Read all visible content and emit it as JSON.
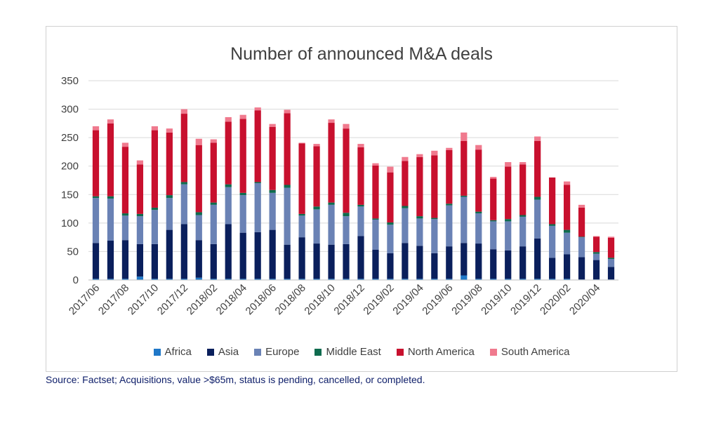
{
  "chart_data": {
    "type": "bar",
    "stacked": true,
    "title": "Number of announced M&A deals",
    "xlabel": "",
    "ylabel": "",
    "ylim": [
      0,
      350
    ],
    "yticks": [
      0,
      50,
      100,
      150,
      200,
      250,
      300,
      350
    ],
    "grid": true,
    "legend_position": "bottom",
    "categories": [
      "2017/06",
      "2017/07",
      "2017/08",
      "2017/09",
      "2017/10",
      "2017/11",
      "2017/12",
      "2018/01",
      "2018/02",
      "2018/03",
      "2018/04",
      "2018/05",
      "2018/06",
      "2018/07",
      "2018/08",
      "2018/09",
      "2018/10",
      "2018/11",
      "2018/12",
      "2019/01",
      "2019/02",
      "2019/03",
      "2019/04",
      "2019/05",
      "2019/06",
      "2019/07",
      "2019/08",
      "2019/09",
      "2019/10",
      "2019/11",
      "2019/12",
      "2020/01",
      "2020/02",
      "2020/03",
      "2020/04",
      "2020/05"
    ],
    "tick_labels": [
      "2017/06",
      "2017/08",
      "2017/10",
      "2017/12",
      "2018/02",
      "2018/04",
      "2018/06",
      "2018/08",
      "2018/10",
      "2018/12",
      "2019/02",
      "2019/04",
      "2019/06",
      "2019/08",
      "2019/10",
      "2019/12",
      "2020/02",
      "2020/04"
    ],
    "series": [
      {
        "name": "Africa",
        "color": "#1f78c8",
        "values": [
          2,
          2,
          2,
          6,
          2,
          2,
          2,
          4,
          2,
          2,
          2,
          2,
          2,
          2,
          2,
          2,
          2,
          2,
          2,
          2,
          2,
          2,
          2,
          2,
          2,
          8,
          2,
          2,
          2,
          2,
          2,
          2,
          2,
          1,
          1,
          1
        ]
      },
      {
        "name": "Asia",
        "color": "#0a1f5c",
        "values": [
          63,
          67,
          68,
          57,
          61,
          86,
          96,
          66,
          61,
          96,
          81,
          82,
          86,
          60,
          73,
          62,
          60,
          61,
          75,
          51,
          45,
          63,
          58,
          45,
          57,
          57,
          62,
          52,
          50,
          57,
          71,
          37,
          43,
          39,
          34,
          22
        ]
      },
      {
        "name": "Europe",
        "color": "#6a82b5",
        "values": [
          79,
          74,
          43,
          49,
          60,
          56,
          70,
          44,
          69,
          65,
          66,
          86,
          65,
          100,
          38,
          60,
          70,
          49,
          52,
          53,
          50,
          61,
          48,
          60,
          72,
          81,
          53,
          49,
          51,
          52,
          68,
          56,
          38,
          35,
          11,
          14
        ]
      },
      {
        "name": "Middle East",
        "color": "#0e6b4e",
        "values": [
          3,
          4,
          4,
          4,
          4,
          5,
          4,
          5,
          4,
          5,
          4,
          2,
          5,
          5,
          3,
          5,
          4,
          6,
          3,
          2,
          4,
          4,
          4,
          2,
          3,
          2,
          3,
          2,
          4,
          3,
          5,
          3,
          5,
          1,
          3,
          2
        ]
      },
      {
        "name": "North America",
        "color": "#c8102e",
        "values": [
          116,
          128,
          117,
          87,
          136,
          110,
          120,
          118,
          105,
          110,
          130,
          126,
          111,
          126,
          124,
          106,
          140,
          148,
          101,
          93,
          88,
          79,
          104,
          110,
          94,
          96,
          109,
          73,
          92,
          89,
          98,
          82,
          79,
          51,
          27,
          35
        ]
      },
      {
        "name": "South America",
        "color": "#f07a8e",
        "values": [
          7,
          7,
          7,
          7,
          7,
          7,
          8,
          11,
          6,
          8,
          7,
          5,
          5,
          6,
          1,
          4,
          6,
          8,
          6,
          4,
          10,
          7,
          5,
          8,
          4,
          15,
          8,
          3,
          8,
          4,
          8,
          0,
          6,
          5,
          1,
          2
        ]
      }
    ]
  },
  "source_note": "Source: Factset; Acquisitions, value >$65m, status is pending, cancelled, or completed."
}
